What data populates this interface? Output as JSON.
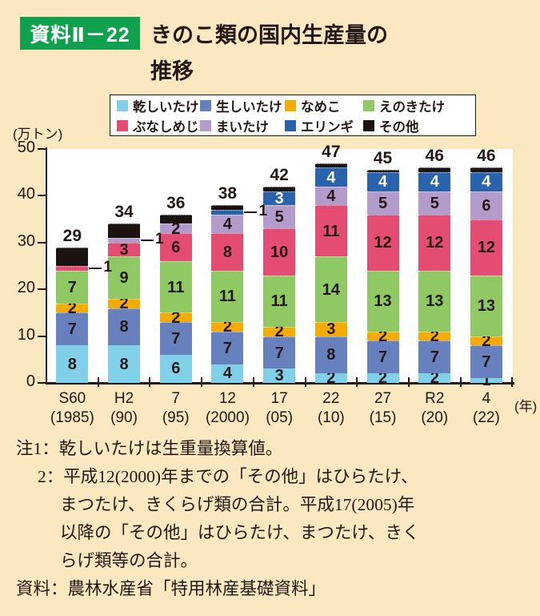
{
  "header": {
    "badge": "資料Ⅱ－22",
    "title_line1": "きのこ類の国内生産量の",
    "title_line2": "推移"
  },
  "chart_data": {
    "type": "bar",
    "subtype": "stacked",
    "title": "きのこ類の国内生産量の推移",
    "unit_label": "(万トン)",
    "year_label": "(年)",
    "ylim": [
      0,
      50
    ],
    "yticks": [
      0,
      10,
      20,
      30,
      40,
      50
    ],
    "grid": false,
    "legend_position": "top",
    "plot_background": "#FFFFFF",
    "categories": [
      {
        "era": "S60",
        "year": "(1985)"
      },
      {
        "era": "H2",
        "year": "(90)"
      },
      {
        "era": "7",
        "year": "(95)"
      },
      {
        "era": "12",
        "year": "(2000)"
      },
      {
        "era": "17",
        "year": "(05)"
      },
      {
        "era": "22",
        "year": "(10)"
      },
      {
        "era": "27",
        "year": "(15)"
      },
      {
        "era": "R2",
        "year": "(20)"
      },
      {
        "era": "4",
        "year": "(22)"
      }
    ],
    "totals": [
      29,
      34,
      36,
      38,
      42,
      47,
      45,
      46,
      46
    ],
    "series": [
      {
        "name": "乾しいたけ",
        "color": "#7FD0E8",
        "label_color": "#231815",
        "values": [
          8,
          8,
          6,
          4,
          3,
          2,
          2,
          2,
          1
        ]
      },
      {
        "name": "生しいたけ",
        "color": "#6681BE",
        "label_color": "#231815",
        "values": [
          7,
          8,
          7,
          7,
          7,
          8,
          7,
          7,
          7
        ]
      },
      {
        "name": "なめこ",
        "color": "#F6AB00",
        "label_color": "#231815",
        "values": [
          2,
          2,
          2,
          2,
          2,
          3,
          2,
          2,
          2
        ]
      },
      {
        "name": "えのきたけ",
        "color": "#90C863",
        "label_color": "#231815",
        "values": [
          7,
          9,
          11,
          11,
          11,
          14,
          13,
          13,
          13
        ]
      },
      {
        "name": "ぶなしめじ",
        "color": "#E54C72",
        "label_color": "#231815",
        "values": [
          1,
          3,
          6,
          8,
          10,
          11,
          12,
          12,
          12
        ]
      },
      {
        "name": "まいたけ",
        "color": "#B39BCB",
        "label_color": "#231815",
        "values": [
          0,
          1,
          2,
          4,
          5,
          4,
          5,
          5,
          6
        ]
      },
      {
        "name": "エリンギ",
        "color": "#2A63AD",
        "label_color": "#FFFFFF",
        "values": [
          0,
          0,
          0,
          1,
          3,
          4,
          4,
          4,
          4
        ]
      },
      {
        "name": "その他",
        "color": "#1A1311",
        "label_color": "#FFFFFF",
        "unlabeled": true,
        "values": [
          4,
          3,
          2,
          1,
          1,
          1,
          0.5,
          1,
          1
        ]
      }
    ],
    "callouts": [
      {
        "bar": 0,
        "series": 4,
        "label": "1"
      },
      {
        "bar": 1,
        "series": 5,
        "label": "1"
      },
      {
        "bar": 3,
        "series": 6,
        "label": "1"
      }
    ]
  },
  "notes": {
    "lines": [
      {
        "text": "注1：乾しいたけは生重量換算値。",
        "indent": 0
      },
      {
        "text": "2：平成12(2000)年までの「その他」はひらたけ、",
        "indent": 1
      },
      {
        "text": "まつたけ、きくらげ類の合計。平成17(2005)年",
        "indent": 2
      },
      {
        "text": "以降の「その他」はひらたけ、まつたけ、きく",
        "indent": 2
      },
      {
        "text": "らげ類等の合計。",
        "indent": 2
      },
      {
        "text": "資料：農林水産省「特用林産基礎資料」",
        "indent": 0
      }
    ]
  },
  "colors": {
    "page_background": "#FBE7C0",
    "badge_green": "#0FA14D",
    "text": "#231815"
  }
}
